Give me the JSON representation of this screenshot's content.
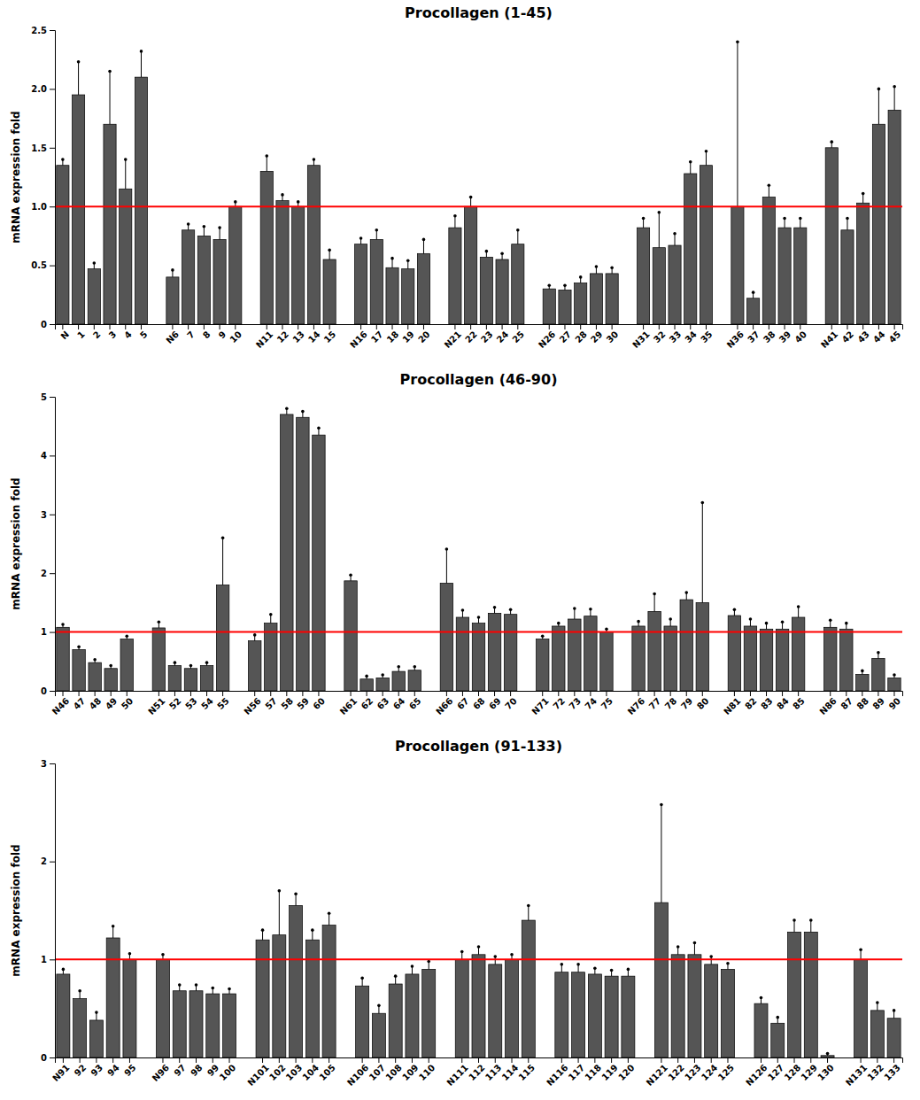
{
  "chart_data": [
    {
      "type": "bar",
      "title": "Procollagen (1-45)",
      "ylabel": "mRNA expression fold",
      "categories": [
        "N",
        "1",
        "2",
        "3",
        "4",
        "5",
        "N6",
        "7",
        "8",
        "9",
        "10",
        "N11",
        "12",
        "13",
        "14",
        "15",
        "N16",
        "17",
        "18",
        "19",
        "20",
        "N21",
        "22",
        "23",
        "24",
        "25",
        "N26",
        "27",
        "28",
        "29",
        "30",
        "N31",
        "32",
        "33",
        "34",
        "35",
        "N36",
        "37",
        "38",
        "39",
        "40",
        "N41",
        "42",
        "43",
        "44",
        "45"
      ],
      "values": [
        1.35,
        1.95,
        0.47,
        1.7,
        1.15,
        2.1,
        0.4,
        0.8,
        0.75,
        0.72,
        1.0,
        1.3,
        1.05,
        1.0,
        1.35,
        0.55,
        0.68,
        0.72,
        0.48,
        0.47,
        0.6,
        0.82,
        1.0,
        0.57,
        0.55,
        0.68,
        0.3,
        0.29,
        0.35,
        0.43,
        0.43,
        0.82,
        0.65,
        0.67,
        1.28,
        1.35,
        1.0,
        0.22,
        1.08,
        0.82,
        0.82,
        1.5,
        0.8,
        1.03,
        1.7,
        1.82
      ],
      "errors": [
        0.05,
        0.28,
        0.05,
        0.45,
        0.25,
        0.22,
        0.06,
        0.05,
        0.08,
        0.1,
        0.04,
        0.13,
        0.05,
        0.04,
        0.05,
        0.08,
        0.05,
        0.08,
        0.08,
        0.07,
        0.12,
        0.1,
        0.08,
        0.05,
        0.05,
        0.12,
        0.03,
        0.04,
        0.05,
        0.06,
        0.05,
        0.08,
        0.3,
        0.1,
        0.1,
        0.12,
        1.4,
        0.05,
        0.1,
        0.08,
        0.08,
        0.05,
        0.1,
        0.08,
        0.3,
        0.2
      ],
      "color": "#555555",
      "reference_line": {
        "value": 1.0,
        "color": "#ff0000"
      },
      "ylim": [
        0,
        2.5
      ],
      "yticks": [
        0,
        0.5,
        {
          "value": 1.0,
          "label": "1.0"
        },
        1.5,
        {
          "value": 2.0,
          "label": "2.0"
        },
        2.5
      ],
      "grid": false
    },
    {
      "type": "bar",
      "title": "Procollagen (46-90)",
      "ylabel": "mRNA expression fold",
      "categories": [
        "N46",
        "47",
        "48",
        "49",
        "50",
        "N51",
        "52",
        "53",
        "54",
        "55",
        "N56",
        "57",
        "58",
        "59",
        "60",
        "N61",
        "62",
        "63",
        "64",
        "65",
        "N66",
        "67",
        "68",
        "69",
        "70",
        "N71",
        "72",
        "73",
        "74",
        "75",
        "N76",
        "77",
        "78",
        "79",
        "80",
        "N81",
        "82",
        "83",
        "84",
        "85",
        "N86",
        "87",
        "88",
        "89",
        "90"
      ],
      "values": [
        1.08,
        0.7,
        0.48,
        0.38,
        0.88,
        1.07,
        0.43,
        0.38,
        0.43,
        1.8,
        0.85,
        1.15,
        4.7,
        4.65,
        4.35,
        1.87,
        0.2,
        0.22,
        0.33,
        0.35,
        1.83,
        1.25,
        1.15,
        1.32,
        1.3,
        0.88,
        1.1,
        1.22,
        1.27,
        1.0,
        1.1,
        1.35,
        1.1,
        1.55,
        1.5,
        1.28,
        1.1,
        1.05,
        1.05,
        1.25,
        1.08,
        1.05,
        0.28,
        0.55,
        0.22
      ],
      "errors": [
        0.05,
        0.05,
        0.05,
        0.05,
        0.05,
        0.1,
        0.05,
        0.05,
        0.05,
        0.8,
        0.1,
        0.15,
        0.1,
        0.1,
        0.12,
        0.1,
        0.05,
        0.05,
        0.08,
        0.06,
        0.58,
        0.12,
        0.1,
        0.1,
        0.08,
        0.05,
        0.05,
        0.18,
        0.12,
        0.05,
        0.08,
        0.3,
        0.12,
        0.12,
        1.7,
        0.1,
        0.12,
        0.1,
        0.12,
        0.18,
        0.12,
        0.1,
        0.06,
        0.1,
        0.05
      ],
      "color": "#555555",
      "reference_line": {
        "value": 1.0,
        "color": "#ff0000"
      },
      "ylim": [
        0,
        5
      ],
      "yticks": [
        0,
        1,
        2,
        3,
        4,
        5
      ],
      "grid": false
    },
    {
      "type": "bar",
      "title": "Procollagen (91-133)",
      "ylabel": "mRNA expression fold",
      "categories": [
        "N91",
        "92",
        "93",
        "94",
        "95",
        "N96",
        "97",
        "98",
        "99",
        "100",
        "N101",
        "102",
        "103",
        "104",
        "105",
        "N106",
        "107",
        "108",
        "109",
        "110",
        "N111",
        "112",
        "113",
        "114",
        "115",
        "N116",
        "117",
        "118",
        "119",
        "120",
        "N121",
        "122",
        "123",
        "124",
        "125",
        "N126",
        "127",
        "128",
        "129",
        "130",
        "N131",
        "132",
        "133"
      ],
      "values": [
        0.85,
        0.6,
        0.38,
        1.22,
        1.0,
        1.0,
        0.68,
        0.68,
        0.65,
        0.65,
        1.2,
        1.25,
        1.55,
        1.2,
        1.35,
        0.73,
        0.45,
        0.75,
        0.85,
        0.9,
        1.0,
        1.05,
        0.95,
        1.0,
        1.4,
        0.87,
        0.87,
        0.85,
        0.83,
        0.83,
        1.58,
        1.05,
        1.05,
        0.95,
        0.9,
        0.55,
        0.35,
        1.28,
        1.28,
        0.02,
        1.0,
        0.48,
        0.4
      ],
      "errors": [
        0.05,
        0.08,
        0.08,
        0.12,
        0.06,
        0.05,
        0.06,
        0.06,
        0.06,
        0.05,
        0.1,
        0.45,
        0.12,
        0.1,
        0.12,
        0.08,
        0.08,
        0.08,
        0.08,
        0.08,
        0.08,
        0.08,
        0.08,
        0.05,
        0.15,
        0.08,
        0.08,
        0.06,
        0.06,
        0.07,
        1.0,
        0.08,
        0.12,
        0.08,
        0.06,
        0.06,
        0.06,
        0.12,
        0.12,
        0.02,
        0.1,
        0.08,
        0.08
      ],
      "color": "#555555",
      "reference_line": {
        "value": 1.0,
        "color": "#ff0000"
      },
      "ylim": [
        0,
        3
      ],
      "yticks": [
        0,
        1,
        2,
        3
      ],
      "grid": false
    }
  ]
}
